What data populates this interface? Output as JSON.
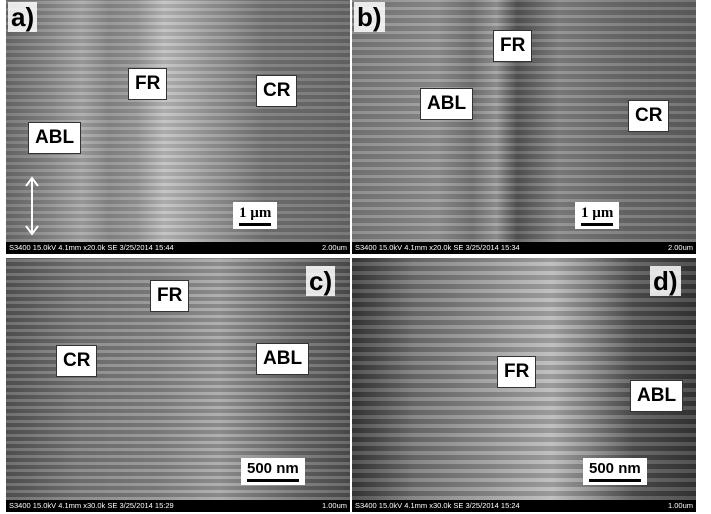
{
  "panels": [
    {
      "letter": "a)",
      "labels": [
        "FR",
        "CR",
        "ABL"
      ],
      "scale": "1 µm",
      "footer": "S3400 15.0kV 4.1mm x20.0k SE 3/25/2014 15:44",
      "footer_scale": "2.00um"
    },
    {
      "letter": "b)",
      "labels": [
        "FR",
        "ABL",
        "CR"
      ],
      "scale": "1 µm",
      "footer": "S3400 15.0kV 4.1mm x20.0k SE 3/25/2014 15:34",
      "footer_scale": "2.00um"
    },
    {
      "letter": "c)",
      "labels": [
        "FR",
        "CR",
        "ABL"
      ],
      "scale": "500 nm",
      "footer": "S3400 15.0kV 4.1mm x30.0k SE 3/25/2014 15:29",
      "footer_scale": "1.00um"
    },
    {
      "letter": "d)",
      "labels": [
        "FR",
        "ABL"
      ],
      "scale": "500 nm",
      "footer": "S3400 15.0kV 4.1mm x30.0k SE 3/25/2014 15:24",
      "footer_scale": "1.00um"
    }
  ]
}
